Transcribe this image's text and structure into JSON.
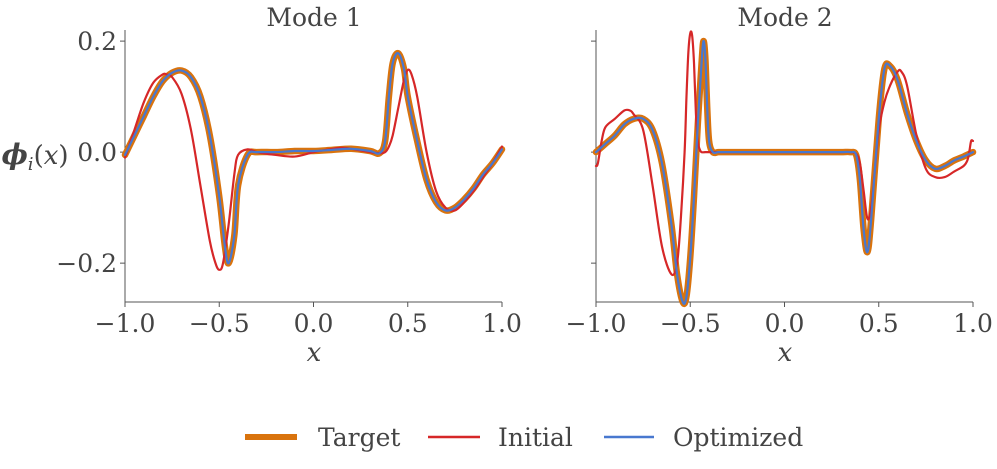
{
  "chart_data": [
    {
      "type": "line",
      "title": "Mode 1",
      "xlabel": "x",
      "ylabel": "ϕi(x)",
      "xlim": [
        -1.0,
        1.0
      ],
      "ylim": [
        -0.27,
        0.22
      ],
      "xticks": [
        -1.0,
        -0.5,
        0.0,
        0.5,
        1.0
      ],
      "xtick_labels": [
        "−1.0",
        "−0.5",
        "0.0",
        "0.5",
        "1.0"
      ],
      "yticks": [
        0.2,
        0.0,
        -0.2
      ],
      "ytick_labels": [
        "0.2",
        "0.0",
        "−0.2"
      ],
      "grid": false,
      "series": [
        {
          "name": "Target",
          "color": "#D9730D",
          "x": [
            -1.0,
            -0.95,
            -0.9,
            -0.85,
            -0.8,
            -0.75,
            -0.7,
            -0.65,
            -0.6,
            -0.55,
            -0.5,
            -0.47,
            -0.45,
            -0.42,
            -0.4,
            -0.35,
            -0.3,
            -0.2,
            -0.1,
            0.0,
            0.1,
            0.2,
            0.3,
            0.35,
            0.38,
            0.4,
            0.42,
            0.45,
            0.48,
            0.5,
            0.55,
            0.6,
            0.65,
            0.7,
            0.75,
            0.8,
            0.85,
            0.9,
            0.95,
            1.0
          ],
          "y": [
            -0.005,
            0.03,
            0.065,
            0.1,
            0.128,
            0.143,
            0.147,
            0.135,
            0.1,
            0.03,
            -0.08,
            -0.17,
            -0.2,
            -0.15,
            -0.06,
            -0.005,
            0.0,
            0.0,
            0.002,
            0.002,
            0.004,
            0.006,
            0.002,
            -0.002,
            0.02,
            0.1,
            0.16,
            0.178,
            0.15,
            0.1,
            0.02,
            -0.05,
            -0.09,
            -0.105,
            -0.1,
            -0.085,
            -0.065,
            -0.04,
            -0.02,
            0.005
          ]
        },
        {
          "name": "Initial",
          "color": "#D62728",
          "x": [
            -1.0,
            -0.95,
            -0.9,
            -0.85,
            -0.8,
            -0.78,
            -0.75,
            -0.7,
            -0.65,
            -0.6,
            -0.55,
            -0.52,
            -0.5,
            -0.48,
            -0.45,
            -0.42,
            -0.4,
            -0.35,
            -0.3,
            -0.2,
            -0.1,
            0.0,
            0.1,
            0.15,
            0.2,
            0.3,
            0.35,
            0.38,
            0.4,
            0.42,
            0.45,
            0.48,
            0.5,
            0.52,
            0.55,
            0.6,
            0.65,
            0.7,
            0.75,
            0.8,
            0.85,
            0.9,
            0.95,
            1.0
          ],
          "y": [
            -0.01,
            0.04,
            0.09,
            0.125,
            0.14,
            0.14,
            0.135,
            0.105,
            0.04,
            -0.06,
            -0.16,
            -0.2,
            -0.212,
            -0.2,
            -0.13,
            -0.04,
            -0.005,
            0.005,
            0.0,
            -0.005,
            -0.008,
            0.0,
            0.006,
            0.008,
            0.006,
            0.0,
            -0.002,
            0.0,
            0.01,
            0.03,
            0.08,
            0.13,
            0.148,
            0.14,
            0.1,
            0.0,
            -0.07,
            -0.1,
            -0.105,
            -0.09,
            -0.07,
            -0.045,
            -0.02,
            0.01
          ]
        },
        {
          "name": "Optimized",
          "color": "#4878CF",
          "x": [
            -1.0,
            -0.95,
            -0.9,
            -0.85,
            -0.8,
            -0.75,
            -0.7,
            -0.65,
            -0.6,
            -0.55,
            -0.5,
            -0.47,
            -0.45,
            -0.42,
            -0.4,
            -0.35,
            -0.3,
            -0.2,
            -0.1,
            0.0,
            0.1,
            0.2,
            0.3,
            0.35,
            0.38,
            0.4,
            0.42,
            0.45,
            0.48,
            0.5,
            0.55,
            0.6,
            0.65,
            0.7,
            0.75,
            0.8,
            0.85,
            0.9,
            0.95,
            1.0
          ],
          "y": [
            -0.005,
            0.03,
            0.065,
            0.1,
            0.128,
            0.143,
            0.147,
            0.135,
            0.1,
            0.03,
            -0.08,
            -0.17,
            -0.2,
            -0.15,
            -0.06,
            -0.005,
            0.0,
            0.0,
            0.002,
            0.002,
            0.004,
            0.006,
            0.002,
            -0.002,
            0.02,
            0.1,
            0.16,
            0.178,
            0.15,
            0.1,
            0.02,
            -0.05,
            -0.09,
            -0.105,
            -0.1,
            -0.085,
            -0.065,
            -0.04,
            -0.02,
            0.005
          ]
        }
      ]
    },
    {
      "type": "line",
      "title": "Mode 2",
      "xlabel": "x",
      "xlim": [
        -1.0,
        1.0
      ],
      "ylim": [
        -0.27,
        0.22
      ],
      "xticks": [
        -1.0,
        -0.5,
        0.0,
        0.5,
        1.0
      ],
      "xtick_labels": [
        "−1.0",
        "−0.5",
        "0.0",
        "0.5",
        "1.0"
      ],
      "yticks": [
        0.2,
        0.0,
        -0.2
      ],
      "ytick_labels": [],
      "grid": false,
      "series": [
        {
          "name": "Target",
          "color": "#D9730D",
          "x": [
            -1.0,
            -0.95,
            -0.9,
            -0.85,
            -0.8,
            -0.75,
            -0.7,
            -0.65,
            -0.6,
            -0.57,
            -0.54,
            -0.52,
            -0.5,
            -0.48,
            -0.46,
            -0.44,
            -0.43,
            -0.42,
            -0.41,
            -0.4,
            -0.38,
            -0.35,
            -0.3,
            -0.2,
            -0.1,
            0.0,
            0.1,
            0.2,
            0.3,
            0.35,
            0.38,
            0.4,
            0.42,
            0.44,
            0.46,
            0.5,
            0.53,
            0.56,
            0.6,
            0.65,
            0.7,
            0.75,
            0.8,
            0.85,
            0.9,
            0.95,
            1.0
          ],
          "y": [
            0.0,
            0.015,
            0.03,
            0.05,
            0.06,
            0.06,
            0.04,
            -0.02,
            -0.13,
            -0.22,
            -0.27,
            -0.26,
            -0.19,
            -0.08,
            0.05,
            0.16,
            0.2,
            0.17,
            0.08,
            0.02,
            0.0,
            0.0,
            0.0,
            0.0,
            0.0,
            0.0,
            0.0,
            0.0,
            0.0,
            0.0,
            -0.005,
            -0.05,
            -0.14,
            -0.18,
            -0.12,
            0.06,
            0.15,
            0.155,
            0.13,
            0.07,
            0.02,
            -0.015,
            -0.03,
            -0.025,
            -0.015,
            -0.008,
            0.0
          ]
        },
        {
          "name": "Initial",
          "color": "#D62728",
          "x": [
            -1.0,
            -0.99,
            -0.97,
            -0.95,
            -0.9,
            -0.85,
            -0.82,
            -0.8,
            -0.75,
            -0.7,
            -0.65,
            -0.6,
            -0.57,
            -0.55,
            -0.53,
            -0.52,
            -0.51,
            -0.5,
            -0.49,
            -0.48,
            -0.47,
            -0.46,
            -0.45,
            -0.44,
            -0.42,
            -0.4,
            -0.35,
            -0.3,
            -0.2,
            -0.1,
            0.0,
            0.1,
            0.2,
            0.3,
            0.35,
            0.38,
            0.4,
            0.42,
            0.44,
            0.46,
            0.48,
            0.5,
            0.53,
            0.56,
            0.6,
            0.62,
            0.65,
            0.7,
            0.75,
            0.8,
            0.85,
            0.9,
            0.95,
            0.97,
            0.98,
            0.99,
            1.0
          ],
          "y": [
            -0.025,
            -0.02,
            0.02,
            0.045,
            0.06,
            0.075,
            0.075,
            0.068,
            0.04,
            -0.06,
            -0.17,
            -0.22,
            -0.2,
            -0.12,
            0.0,
            0.1,
            0.18,
            0.214,
            0.21,
            0.16,
            0.07,
            0.02,
            0.005,
            0.0,
            0.0,
            0.0,
            0.0,
            0.0,
            0.0,
            0.0,
            0.0,
            0.0,
            0.0,
            0.0,
            0.0,
            -0.003,
            -0.02,
            -0.07,
            -0.12,
            -0.1,
            -0.03,
            0.04,
            0.09,
            0.12,
            0.145,
            0.145,
            0.12,
            0.03,
            -0.03,
            -0.045,
            -0.045,
            -0.035,
            -0.025,
            -0.015,
            0.0,
            0.02,
            0.02
          ]
        },
        {
          "name": "Optimized",
          "color": "#4878CF",
          "x": [
            -1.0,
            -0.95,
            -0.9,
            -0.85,
            -0.8,
            -0.75,
            -0.7,
            -0.65,
            -0.6,
            -0.57,
            -0.54,
            -0.52,
            -0.5,
            -0.48,
            -0.46,
            -0.44,
            -0.43,
            -0.42,
            -0.41,
            -0.4,
            -0.38,
            -0.35,
            -0.3,
            -0.2,
            -0.1,
            0.0,
            0.1,
            0.2,
            0.3,
            0.35,
            0.38,
            0.4,
            0.42,
            0.44,
            0.46,
            0.5,
            0.53,
            0.56,
            0.6,
            0.65,
            0.7,
            0.75,
            0.8,
            0.85,
            0.9,
            0.95,
            1.0
          ],
          "y": [
            0.0,
            0.015,
            0.03,
            0.05,
            0.06,
            0.06,
            0.04,
            -0.02,
            -0.13,
            -0.22,
            -0.27,
            -0.26,
            -0.19,
            -0.08,
            0.05,
            0.16,
            0.2,
            0.17,
            0.08,
            0.02,
            0.0,
            0.0,
            0.0,
            0.0,
            0.0,
            0.0,
            0.0,
            0.0,
            0.0,
            0.0,
            -0.005,
            -0.05,
            -0.14,
            -0.18,
            -0.12,
            0.06,
            0.15,
            0.155,
            0.13,
            0.07,
            0.02,
            -0.015,
            -0.03,
            -0.025,
            -0.015,
            -0.008,
            0.0
          ]
        }
      ]
    }
  ],
  "legend": {
    "placement": "bottom-center",
    "entries": [
      {
        "label": "Target",
        "color": "#D9730D"
      },
      {
        "label": "Initial",
        "color": "#D62728"
      },
      {
        "label": "Optimized",
        "color": "#4878CF"
      }
    ]
  }
}
